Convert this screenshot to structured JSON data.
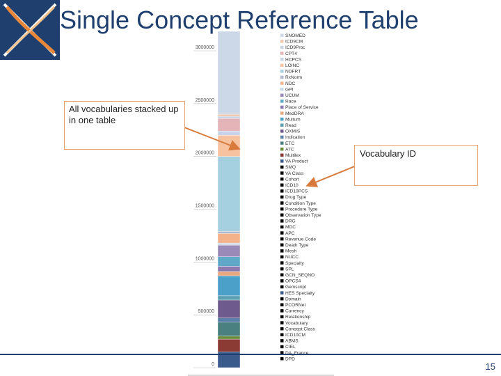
{
  "slide": {
    "title": "Single Concept Reference Table",
    "page_number": "15"
  },
  "callouts": {
    "left": "All vocabularies stacked up in one table",
    "right": "Vocabulary ID"
  },
  "colors": {
    "title": "#1f3f6e",
    "callout_border": "#e8a070",
    "arrow": "#d87a3c",
    "logo_blue": "#1f3f6e",
    "logo_orange": "#e8873a"
  },
  "chart_data": {
    "type": "bar",
    "stacked": true,
    "ylim": [
      0,
      3000000
    ],
    "y_ticks": [
      {
        "value": 0,
        "label": "0"
      },
      {
        "value": 500000,
        "label": "500000"
      },
      {
        "value": 1000000,
        "label": "1000000"
      },
      {
        "value": 1500000,
        "label": "1500000"
      },
      {
        "value": 2000000,
        "label": "2000000"
      },
      {
        "value": 2500000,
        "label": "2500000"
      },
      {
        "value": 3000000,
        "label": "3000000"
      }
    ],
    "legend_position": "right",
    "legend_labels": [
      "SNOMED",
      "ICD9CM",
      "ICD9Proc",
      "CPT4",
      "HCPCS",
      "LOINC",
      "NDFRT",
      "RxNorm",
      "NDC",
      "GPI",
      "UCUM",
      "Race",
      "Place of Service",
      "MedDRA",
      "Multum",
      "Read",
      "OXMIS",
      "Indication",
      "ETC",
      "ATC",
      "Multilex",
      "VA Product",
      "SMQ",
      "VA Class",
      "Cohort",
      "ICD10",
      "ICD10PCS",
      "Drug Type",
      "Condition Type",
      "Procedure Type",
      "Observation Type",
      "DRG",
      "MDC",
      "APC",
      "Revenue Code",
      "Death Type",
      "Mesh",
      "NUCC",
      "Specialty",
      "SPL",
      "GCN_SEQNO",
      "OPCS4",
      "Gemscript",
      "HES Specialty",
      "Domain",
      "PCORNet",
      "Currency",
      "Relationship",
      "Vocabulary",
      "Concept Class",
      "ICD10CM",
      "ABMS",
      "CIEL",
      "DA_France",
      "DPD"
    ],
    "segments": [
      {
        "color": "#3b5a8c",
        "from": 0,
        "to": 150000
      },
      {
        "color": "#8b3a34",
        "from": 150000,
        "to": 270000
      },
      {
        "color": "#6a8a3c",
        "from": 270000,
        "to": 300000
      },
      {
        "color": "#4a8080",
        "from": 300000,
        "to": 430000
      },
      {
        "color": "#5a7fa8",
        "from": 430000,
        "to": 470000
      },
      {
        "color": "#6e5a8c",
        "from": 470000,
        "to": 640000
      },
      {
        "color": "#5aa0b0",
        "from": 640000,
        "to": 680000
      },
      {
        "color": "#4aa0c8",
        "from": 680000,
        "to": 870000
      },
      {
        "color": "#e7a880",
        "from": 870000,
        "to": 910000
      },
      {
        "color": "#8a7ab0",
        "from": 910000,
        "to": 960000
      },
      {
        "color": "#5fa8c8",
        "from": 960000,
        "to": 1050000
      },
      {
        "color": "#9a8ab8",
        "from": 1050000,
        "to": 1160000
      },
      {
        "color": "#c8d8e8",
        "from": 1160000,
        "to": 1180000
      },
      {
        "color": "#f4b28a",
        "from": 1180000,
        "to": 1270000
      },
      {
        "color": "#b0b8d0",
        "from": 1270000,
        "to": 1290000
      },
      {
        "color": "#a4d0e0",
        "from": 1290000,
        "to": 2000000
      },
      {
        "color": "#f7c2a0",
        "from": 2000000,
        "to": 2200000
      },
      {
        "color": "#c6d3e8",
        "from": 2200000,
        "to": 2240000
      },
      {
        "color": "#e4b4b8",
        "from": 2240000,
        "to": 2360000
      },
      {
        "color": "#c8d4e4",
        "from": 2360000,
        "to": 2380000
      },
      {
        "color": "#f0c8b0",
        "from": 2380000,
        "to": 2400000
      },
      {
        "color": "#ccd8e8",
        "from": 2400000,
        "to": 3200000
      }
    ]
  }
}
